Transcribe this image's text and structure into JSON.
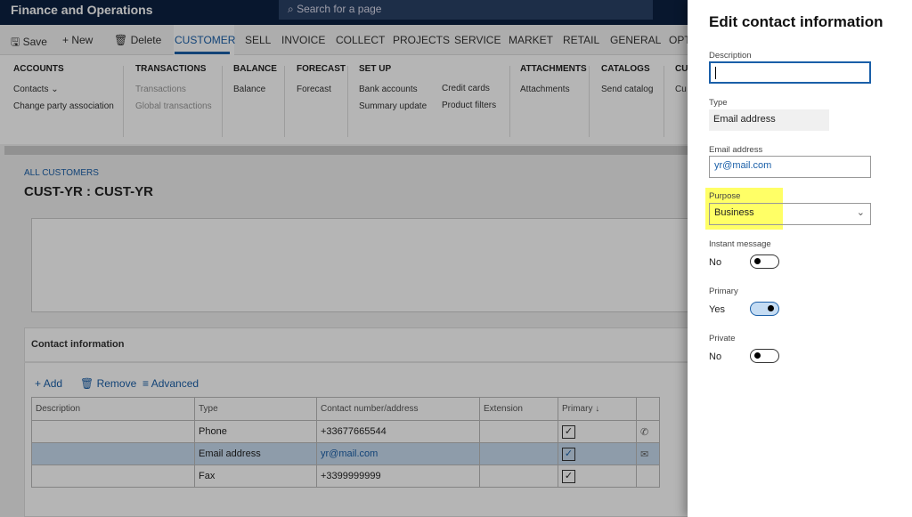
{
  "app": {
    "title": "Finance and Operations",
    "search_placeholder": "Search for a page"
  },
  "actions": {
    "save": "Save",
    "new": "New",
    "delete": "Delete"
  },
  "tabs": [
    "CUSTOMER",
    "SELL",
    "INVOICE",
    "COLLECT",
    "PROJECTS",
    "SERVICE",
    "MARKET",
    "RETAIL",
    "GENERAL",
    "OPT"
  ],
  "ribbon": {
    "accounts": {
      "title": "ACCOUNTS",
      "items": [
        "Contacts ⌄",
        "Change party association"
      ]
    },
    "transactions": {
      "title": "TRANSACTIONS",
      "items": [
        "Transactions",
        "Global transactions"
      ]
    },
    "balance": {
      "title": "BALANCE",
      "items": [
        "Balance"
      ]
    },
    "forecast": {
      "title": "FORECAST",
      "items": [
        "Forecast"
      ]
    },
    "setup": {
      "title": "SET UP",
      "items": [
        "Bank accounts",
        "Summary update",
        "Credit cards",
        "Product filters"
      ]
    },
    "attachments": {
      "title": "ATTACHMENTS",
      "items": [
        "Attachments"
      ]
    },
    "catalogs": {
      "title": "CATALOGS",
      "items": [
        "Send catalog"
      ]
    },
    "cut": {
      "title": "CUS",
      "items": [
        "Cu"
      ]
    }
  },
  "page": {
    "breadcrumb": "ALL CUSTOMERS",
    "title": "CUST-YR : CUST-YR"
  },
  "contacts": {
    "section_title": "Contact information",
    "toolbar": {
      "add": "Add",
      "remove": "Remove",
      "advanced": "Advanced"
    },
    "columns": [
      "Description",
      "Type",
      "Contact number/address",
      "Extension",
      "Primary ↓"
    ],
    "rows": [
      {
        "description": "",
        "type": "Phone",
        "contact": "+33677665544",
        "extension": "",
        "primary": true,
        "icon": "phone-icon"
      },
      {
        "description": "",
        "type": "Email address",
        "contact": "yr@mail.com",
        "extension": "",
        "primary": true,
        "icon": "mail-icon",
        "selected": true
      },
      {
        "description": "",
        "type": "Fax",
        "contact": "+3399999999",
        "extension": "",
        "primary": true
      }
    ]
  },
  "panel": {
    "title": "Edit contact information",
    "description_label": "Description",
    "description_value": "",
    "type_label": "Type",
    "type_value": "Email address",
    "email_label": "Email address",
    "email_value": "yr@mail.com",
    "purpose_label": "Purpose",
    "purpose_value": "Business",
    "im_label": "Instant message",
    "im_value": "No",
    "primary_label": "Primary",
    "primary_value": "Yes",
    "private_label": "Private",
    "private_value": "No"
  },
  "colors": {
    "topbar": "#0c2142",
    "accent": "#1a5fa8",
    "highlight": "#ffff66"
  }
}
